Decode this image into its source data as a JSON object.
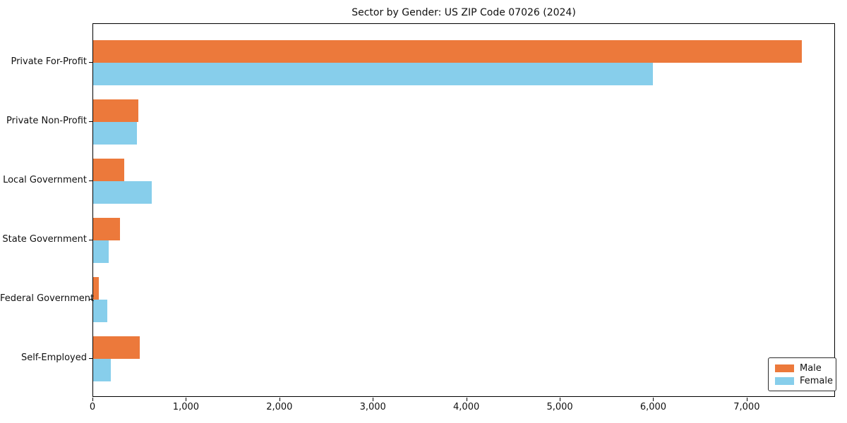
{
  "chart_data": {
    "type": "bar",
    "orientation": "horizontal",
    "title": "Sector by Gender: US ZIP Code 07026 (2024)",
    "categories": [
      "Private For-Profit",
      "Private Non-Profit",
      "Local Government",
      "State Government",
      "Federal Government",
      "Self-Employed"
    ],
    "series": [
      {
        "name": "Male",
        "color": "#EC793B",
        "values": [
          7580,
          480,
          330,
          290,
          60,
          500
        ]
      },
      {
        "name": "Female",
        "color": "#87CEEB",
        "values": [
          5990,
          470,
          630,
          165,
          150,
          190
        ]
      }
    ],
    "xlabel": "",
    "ylabel": "",
    "xlim": [
      0,
      7945
    ],
    "xticks": [
      0,
      1000,
      2000,
      3000,
      4000,
      5000,
      6000,
      7000
    ],
    "xtick_labels": [
      "0",
      "1,000",
      "2,000",
      "3,000",
      "4,000",
      "5,000",
      "6,000",
      "7,000"
    ],
    "grid": false,
    "legend_position": "lower right",
    "background_color": "#ffffff",
    "frame_color": "#000000"
  }
}
